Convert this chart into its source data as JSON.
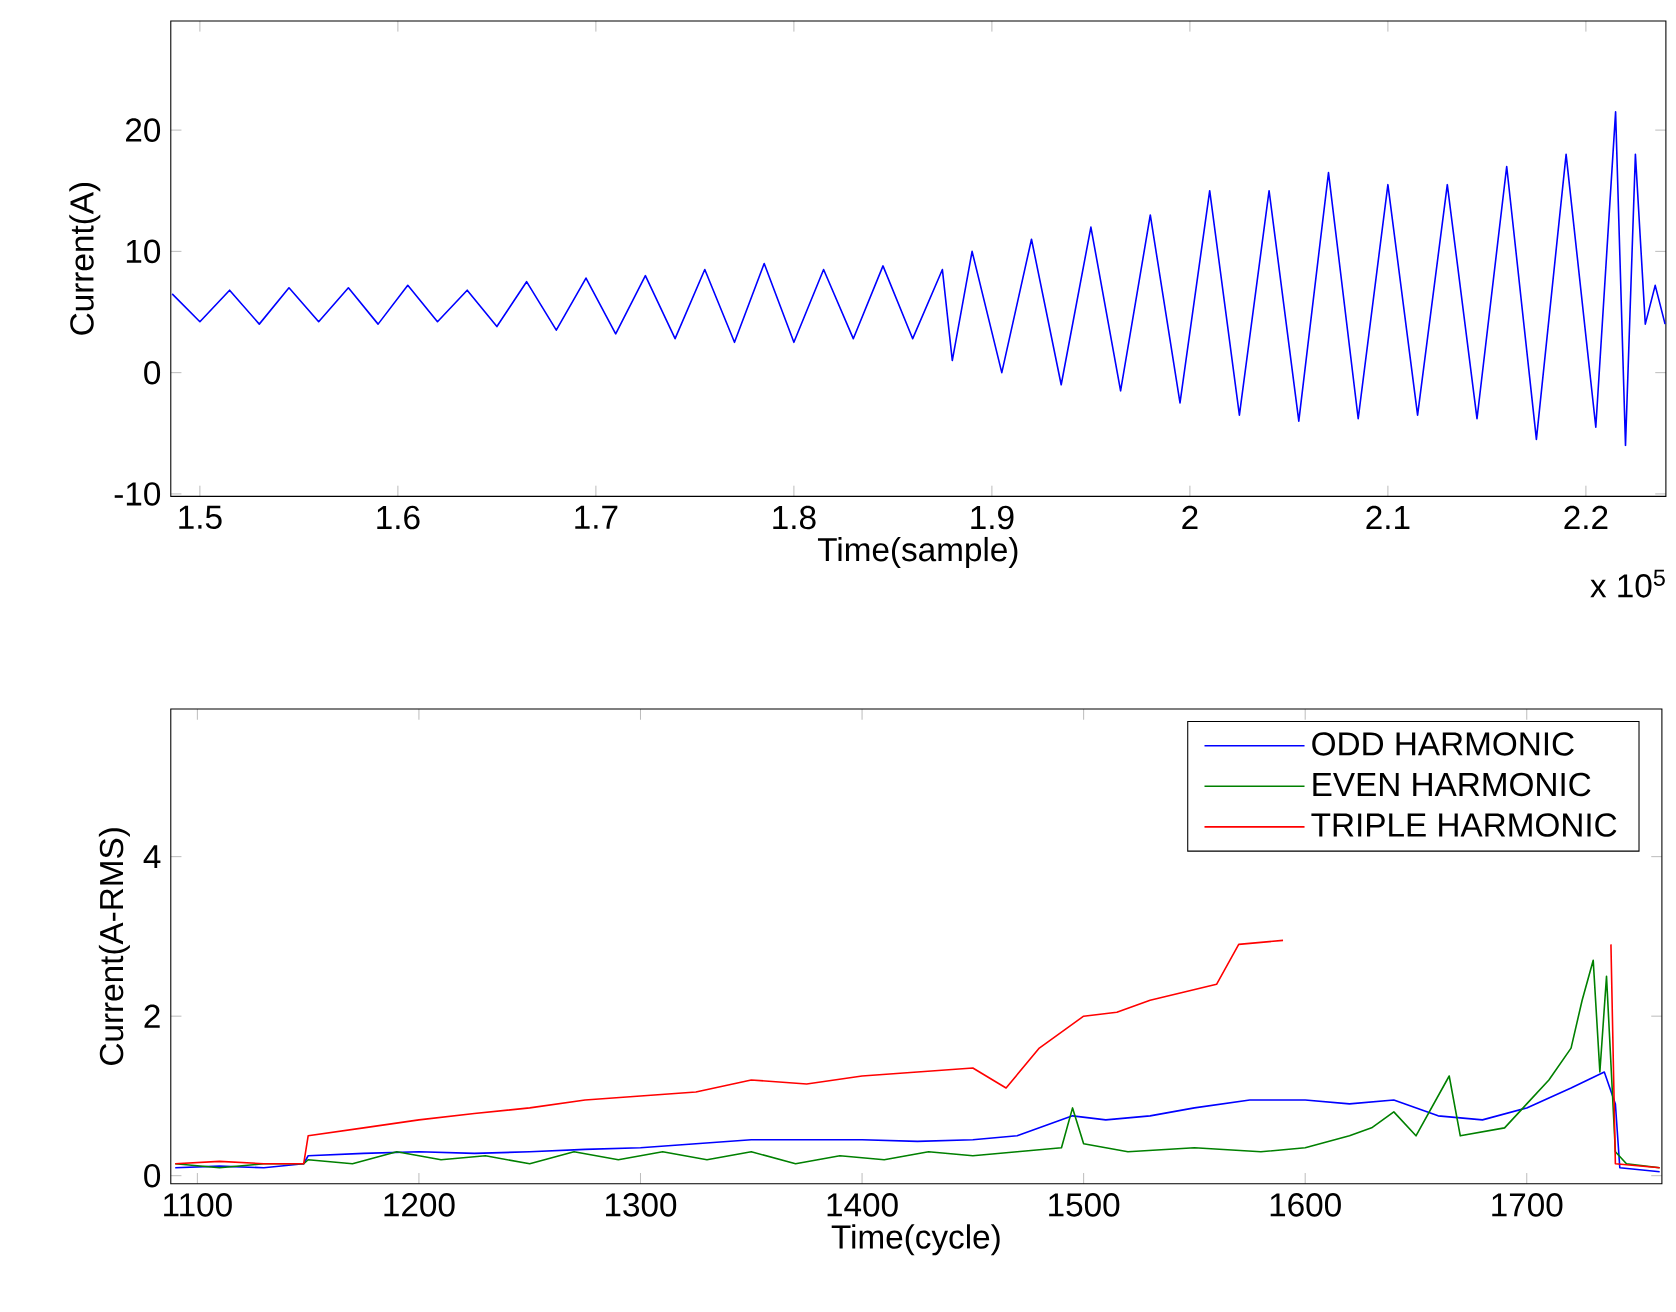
{
  "chart_data": [
    {
      "type": "line",
      "xlabel": "Time(sample)",
      "ylabel": "Current(A)",
      "annotations": [
        "x 10$^{5}$"
      ],
      "xlim": [
        1.4853,
        2.2404
      ],
      "ylim": [
        -10.2,
        29
      ],
      "xticks": [
        1.5,
        1.6,
        1.7,
        1.8,
        1.9,
        2,
        2.1,
        2.2
      ],
      "yticks": [
        -10,
        0,
        10,
        20
      ],
      "color": "#0000ff",
      "x": [
        1.486,
        1.5,
        1.515,
        1.53,
        1.545,
        1.56,
        1.575,
        1.59,
        1.605,
        1.62,
        1.635,
        1.65,
        1.665,
        1.68,
        1.695,
        1.71,
        1.725,
        1.74,
        1.755,
        1.77,
        1.785,
        1.8,
        1.815,
        1.83,
        1.845,
        1.86,
        1.875,
        1.88,
        1.89,
        1.905,
        1.92,
        1.935,
        1.95,
        1.965,
        1.98,
        1.995,
        2.01,
        2.025,
        2.04,
        2.055,
        2.07,
        2.085,
        2.1,
        2.115,
        2.13,
        2.145,
        2.16,
        2.175,
        2.19,
        2.205,
        2.215,
        2.22,
        2.225,
        2.23,
        2.235,
        2.24
      ],
      "values": [
        6.5,
        4.2,
        6.8,
        4.0,
        7.0,
        4.2,
        7.0,
        4.0,
        7.2,
        4.2,
        6.8,
        3.8,
        7.5,
        3.5,
        7.8,
        3.2,
        8.0,
        2.8,
        8.5,
        2.5,
        9.0,
        2.5,
        8.5,
        2.8,
        8.8,
        2.8,
        8.5,
        1.0,
        10.0,
        0.0,
        11.0,
        -1.0,
        12.0,
        -1.5,
        13.0,
        -2.5,
        15.0,
        -3.5,
        15.0,
        -4.0,
        16.5,
        -3.8,
        15.5,
        -3.5,
        15.5,
        -3.8,
        17.0,
        -5.5,
        18.0,
        -4.5,
        21.5,
        -6.0,
        18.0,
        4.0,
        7.2,
        4.0
      ]
    },
    {
      "type": "line",
      "xlabel": "Time(cycle)",
      "ylabel": "Current(A-RMS)",
      "xlim": [
        1088,
        1761
      ],
      "ylim": [
        -0.1,
        5.85
      ],
      "xticks": [
        1100,
        1200,
        1300,
        1400,
        1500,
        1600,
        1700
      ],
      "yticks": [
        0,
        2,
        4
      ],
      "legend": "top right",
      "series": [
        {
          "name": "ODD HARMONIC",
          "color": "#0000ff",
          "x": [
            1090,
            1110,
            1130,
            1148,
            1150,
            1175,
            1200,
            1225,
            1250,
            1275,
            1300,
            1325,
            1350,
            1375,
            1400,
            1425,
            1450,
            1470,
            1485,
            1495,
            1510,
            1530,
            1550,
            1575,
            1600,
            1620,
            1640,
            1660,
            1680,
            1700,
            1720,
            1735,
            1740,
            1742,
            1760
          ],
          "values": [
            0.1,
            0.12,
            0.1,
            0.15,
            0.25,
            0.28,
            0.3,
            0.28,
            0.3,
            0.33,
            0.35,
            0.4,
            0.45,
            0.45,
            0.45,
            0.43,
            0.45,
            0.5,
            0.65,
            0.75,
            0.7,
            0.75,
            0.85,
            0.95,
            0.95,
            0.9,
            0.95,
            0.75,
            0.7,
            0.85,
            1.1,
            1.3,
            0.9,
            0.1,
            0.05
          ]
        },
        {
          "name": "EVEN HARMONIC",
          "color": "#008000",
          "x": [
            1090,
            1110,
            1130,
            1148,
            1150,
            1170,
            1190,
            1210,
            1230,
            1250,
            1270,
            1290,
            1310,
            1330,
            1350,
            1370,
            1390,
            1410,
            1430,
            1450,
            1470,
            1490,
            1495,
            1500,
            1520,
            1550,
            1580,
            1600,
            1620,
            1630,
            1640,
            1650,
            1665,
            1670,
            1690,
            1700,
            1710,
            1720,
            1725,
            1730,
            1733,
            1736,
            1740,
            1745,
            1760
          ],
          "values": [
            0.15,
            0.1,
            0.15,
            0.15,
            0.2,
            0.15,
            0.3,
            0.2,
            0.25,
            0.15,
            0.3,
            0.2,
            0.3,
            0.2,
            0.3,
            0.15,
            0.25,
            0.2,
            0.3,
            0.25,
            0.3,
            0.35,
            0.85,
            0.4,
            0.3,
            0.35,
            0.3,
            0.35,
            0.5,
            0.6,
            0.8,
            0.5,
            1.25,
            0.5,
            0.6,
            0.9,
            1.2,
            1.6,
            2.2,
            2.7,
            1.3,
            2.5,
            0.3,
            0.15,
            0.1
          ]
        },
        {
          "name": "TRIPLE HARMONIC",
          "color": "#ff0000",
          "x": [
            1090,
            1110,
            1130,
            1148,
            1150,
            1175,
            1200,
            1225,
            1250,
            1275,
            1300,
            1325,
            1350,
            1375,
            1400,
            1425,
            1450,
            1465,
            1480,
            1500,
            1515,
            1530,
            1545,
            1560,
            1570,
            1590,
            1600,
            1730,
            1738,
            1740,
            1760
          ],
          "values": [
            0.15,
            0.18,
            0.15,
            0.15,
            0.5,
            0.6,
            0.7,
            0.78,
            0.85,
            0.95,
            1.0,
            1.05,
            1.2,
            1.15,
            1.25,
            1.3,
            1.35,
            1.1,
            1.6,
            2.0,
            2.05,
            2.2,
            2.3,
            2.4,
            2.9,
            2.95,
            null,
            null,
            2.9,
            0.15,
            0.1
          ]
        }
      ]
    }
  ]
}
